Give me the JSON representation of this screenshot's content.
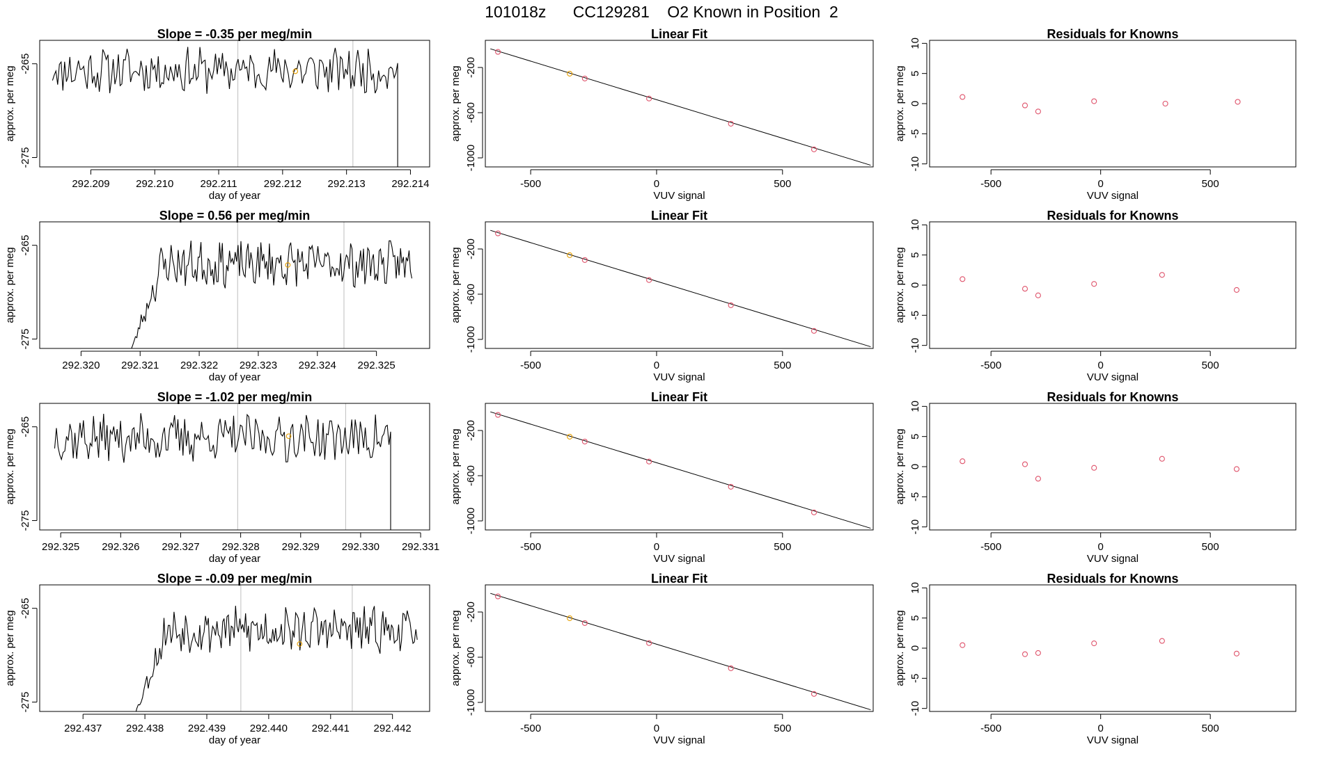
{
  "title": "101018z      CC129281    O2 Known in Position  2",
  "colors": {
    "trace": "#000000",
    "known_point": "#E69F00",
    "residual_point": "#DF536B",
    "cursor_line": "#BEBEBE",
    "axis": "#000000"
  },
  "rows": [
    {
      "timeseries": {
        "type": "line",
        "title": "Slope =  -0.35  per meg/min",
        "xlabel": "day of year",
        "ylabel": "approx. per meg",
        "xlim": [
          292.2082,
          292.2143
        ],
        "ylim": [
          -276,
          -262.5
        ],
        "xticks": [
          "292.209",
          "292.210",
          "292.211",
          "292.212",
          "292.213",
          "292.214"
        ],
        "yticks": [
          "-265",
          "-275"
        ],
        "start": 292.2084,
        "end": 292.2138,
        "center": -265.7,
        "amp": 1.6,
        "seed": 11,
        "dip_start": null,
        "dip_end": 292.2138,
        "vlines": [
          292.2113,
          292.2131
        ],
        "known_point": {
          "x": 292.2122,
          "y": -265.8
        }
      },
      "fit": {
        "type": "scatter",
        "title": "Linear Fit",
        "xlabel": "VUV signal",
        "ylabel": "approx. per meg",
        "xlim": [
          -680,
          860
        ],
        "ylim": [
          -1080,
          40
        ],
        "xticks": [
          "-500",
          "0",
          "500"
        ],
        "yticks": [
          "-200",
          "-600",
          "-1000"
        ],
        "line": {
          "x": [
            -660,
            850
          ],
          "y": [
            -35,
            -1065
          ]
        },
        "points": [
          {
            "x": -630,
            "y": -62,
            "highlight": false
          },
          {
            "x": -345,
            "y": -255,
            "highlight": true
          },
          {
            "x": -285,
            "y": -298,
            "highlight": false
          },
          {
            "x": -30,
            "y": -475,
            "highlight": false
          },
          {
            "x": 295,
            "y": -698,
            "highlight": false
          },
          {
            "x": 625,
            "y": -925,
            "highlight": false
          }
        ]
      },
      "residuals": {
        "type": "scatter",
        "title": "Residuals for Knowns",
        "xlabel": "VUV signal",
        "ylabel": "approx. per meg",
        "xlim": [
          -780,
          890
        ],
        "ylim": [
          -10.5,
          10.5
        ],
        "xticks": [
          "-500",
          "0",
          "500"
        ],
        "yticks": [
          "10",
          "5",
          "0",
          "-5",
          "-10"
        ],
        "points": [
          {
            "x": -630,
            "y": 1.1
          },
          {
            "x": -345,
            "y": -0.3
          },
          {
            "x": -285,
            "y": -1.3
          },
          {
            "x": -30,
            "y": 0.4
          },
          {
            "x": 295,
            "y": 0.0
          },
          {
            "x": 625,
            "y": 0.3
          }
        ]
      }
    },
    {
      "timeseries": {
        "type": "line",
        "title": "Slope =  0.56  per meg/min",
        "xlabel": "day of year",
        "ylabel": "approx. per meg",
        "xlim": [
          292.3193,
          292.3259
        ],
        "ylim": [
          -276,
          -262.5
        ],
        "xticks": [
          "292.320",
          "292.321",
          "292.322",
          "292.323",
          "292.324",
          "292.325"
        ],
        "yticks": [
          "-265",
          "-275"
        ],
        "start": 292.3208,
        "end": 292.3256,
        "center": -267.0,
        "amp": 1.6,
        "seed": 23,
        "dip_start": 292.3208,
        "dip_end": null,
        "vlines": [
          292.32265,
          292.32445
        ],
        "known_point": {
          "x": 292.3235,
          "y": -267.1
        }
      },
      "fit": {
        "type": "scatter",
        "title": "Linear Fit",
        "xlabel": "VUV signal",
        "ylabel": "approx. per meg",
        "xlim": [
          -680,
          860
        ],
        "ylim": [
          -1080,
          40
        ],
        "xticks": [
          "-500",
          "0",
          "500"
        ],
        "yticks": [
          "-200",
          "-600",
          "-1000"
        ],
        "line": {
          "x": [
            -660,
            850
          ],
          "y": [
            -35,
            -1065
          ]
        },
        "points": [
          {
            "x": -630,
            "y": -62,
            "highlight": false
          },
          {
            "x": -345,
            "y": -255,
            "highlight": true
          },
          {
            "x": -285,
            "y": -298,
            "highlight": false
          },
          {
            "x": -30,
            "y": -475,
            "highlight": false
          },
          {
            "x": 295,
            "y": -698,
            "highlight": false
          },
          {
            "x": 625,
            "y": -925,
            "highlight": false
          }
        ]
      },
      "residuals": {
        "type": "scatter",
        "title": "Residuals for Knowns",
        "xlabel": "VUV signal",
        "ylabel": "approx. per meg",
        "xlim": [
          -780,
          890
        ],
        "ylim": [
          -10.5,
          10.5
        ],
        "xticks": [
          "-500",
          "0",
          "500"
        ],
        "yticks": [
          "10",
          "5",
          "0",
          "-5",
          "-10"
        ],
        "points": [
          {
            "x": -630,
            "y": 1.0
          },
          {
            "x": -345,
            "y": -0.6
          },
          {
            "x": -285,
            "y": -1.7
          },
          {
            "x": -30,
            "y": 0.2
          },
          {
            "x": 280,
            "y": 1.7
          },
          {
            "x": 620,
            "y": -0.8
          }
        ]
      }
    },
    {
      "timeseries": {
        "type": "line",
        "title": "Slope =  -1.02  per meg/min",
        "xlabel": "day of year",
        "ylabel": "approx. per meg",
        "xlim": [
          292.32465,
          292.33115
        ],
        "ylim": [
          -276,
          -262.5
        ],
        "xticks": [
          "292.325",
          "292.326",
          "292.327",
          "292.328",
          "292.329",
          "292.330",
          "292.331"
        ],
        "yticks": [
          "-265",
          "-275"
        ],
        "start": 292.3249,
        "end": 292.3305,
        "center": -266.2,
        "amp": 1.7,
        "seed": 37,
        "dip_start": null,
        "dip_end": 292.3305,
        "vlines": [
          292.32795,
          292.32975
        ],
        "known_point": {
          "x": 292.3288,
          "y": -266.0
        }
      },
      "fit": {
        "type": "scatter",
        "title": "Linear Fit",
        "xlabel": "VUV signal",
        "ylabel": "approx. per meg",
        "xlim": [
          -680,
          860
        ],
        "ylim": [
          -1080,
          40
        ],
        "xticks": [
          "-500",
          "0",
          "500"
        ],
        "yticks": [
          "-200",
          "-600",
          "-1000"
        ],
        "line": {
          "x": [
            -660,
            850
          ],
          "y": [
            -35,
            -1065
          ]
        },
        "points": [
          {
            "x": -630,
            "y": -62,
            "highlight": false
          },
          {
            "x": -345,
            "y": -255,
            "highlight": true
          },
          {
            "x": -285,
            "y": -298,
            "highlight": false
          },
          {
            "x": -30,
            "y": -475,
            "highlight": false
          },
          {
            "x": 295,
            "y": -698,
            "highlight": false
          },
          {
            "x": 625,
            "y": -925,
            "highlight": false
          }
        ]
      },
      "residuals": {
        "type": "scatter",
        "title": "Residuals for Knowns",
        "xlabel": "VUV signal",
        "ylabel": "approx. per meg",
        "xlim": [
          -780,
          890
        ],
        "ylim": [
          -10.5,
          10.5
        ],
        "xticks": [
          "-500",
          "0",
          "500"
        ],
        "yticks": [
          "10",
          "5",
          "0",
          "-5",
          "-10"
        ],
        "points": [
          {
            "x": -630,
            "y": 0.9
          },
          {
            "x": -345,
            "y": 0.4
          },
          {
            "x": -285,
            "y": -2.0
          },
          {
            "x": -30,
            "y": -0.2
          },
          {
            "x": 280,
            "y": 1.3
          },
          {
            "x": 620,
            "y": -0.4
          }
        ]
      }
    },
    {
      "timeseries": {
        "type": "line",
        "title": "Slope =  -0.09  per meg/min",
        "xlabel": "day of year",
        "ylabel": "approx. per meg",
        "xlim": [
          292.4363,
          292.4426
        ],
        "ylim": [
          -276,
          -262.5
        ],
        "xticks": [
          "292.437",
          "292.438",
          "292.439",
          "292.440",
          "292.441",
          "292.442"
        ],
        "yticks": [
          "-265",
          "-275"
        ],
        "start": 292.4378,
        "end": 292.4424,
        "center": -267.3,
        "amp": 1.6,
        "seed": 53,
        "dip_start": 292.4378,
        "dip_end": null,
        "vlines": [
          292.43955,
          292.44135
        ],
        "known_point": {
          "x": 292.4405,
          "y": -268.8
        }
      },
      "fit": {
        "type": "scatter",
        "title": "Linear Fit",
        "xlabel": "VUV signal",
        "ylabel": "approx. per meg",
        "xlim": [
          -680,
          860
        ],
        "ylim": [
          -1080,
          40
        ],
        "xticks": [
          "-500",
          "0",
          "500"
        ],
        "yticks": [
          "-200",
          "-600",
          "-1000"
        ],
        "line": {
          "x": [
            -660,
            850
          ],
          "y": [
            -35,
            -1065
          ]
        },
        "points": [
          {
            "x": -630,
            "y": -62,
            "highlight": false
          },
          {
            "x": -345,
            "y": -255,
            "highlight": true
          },
          {
            "x": -285,
            "y": -298,
            "highlight": false
          },
          {
            "x": -30,
            "y": -475,
            "highlight": false
          },
          {
            "x": 295,
            "y": -698,
            "highlight": false
          },
          {
            "x": 625,
            "y": -925,
            "highlight": false
          }
        ]
      },
      "residuals": {
        "type": "scatter",
        "title": "Residuals for Knowns",
        "xlabel": "VUV signal",
        "ylabel": "approx. per meg",
        "xlim": [
          -780,
          890
        ],
        "ylim": [
          -10.5,
          10.5
        ],
        "xticks": [
          "-500",
          "0",
          "500"
        ],
        "yticks": [
          "10",
          "5",
          "0",
          "-5",
          "-10"
        ],
        "points": [
          {
            "x": -630,
            "y": 0.5
          },
          {
            "x": -345,
            "y": -1.0
          },
          {
            "x": -285,
            "y": -0.8
          },
          {
            "x": -30,
            "y": 0.8
          },
          {
            "x": 280,
            "y": 1.2
          },
          {
            "x": 620,
            "y": -0.9
          }
        ]
      }
    }
  ]
}
